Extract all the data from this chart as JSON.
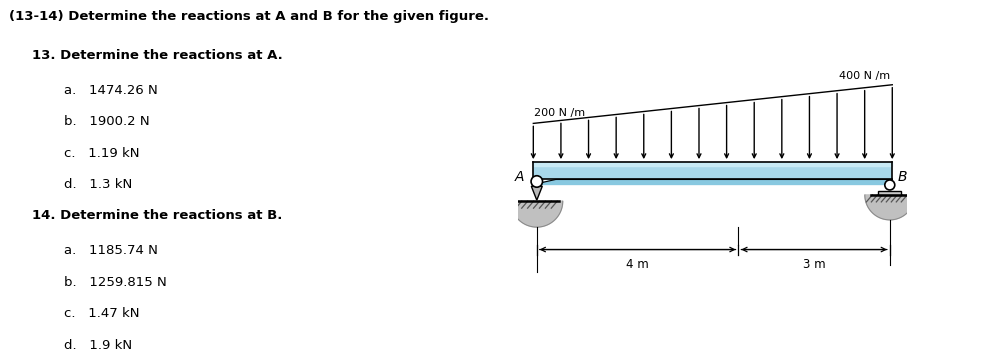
{
  "title": "(13-14) Determine the reactions at A and B for the given figure.",
  "q13_label": "13. Determine the reactions at A.",
  "q13_options": [
    "a.   1474.26 N",
    "b.   1900.2 N",
    "c.   1.19 kN",
    "d.   1.3 kN"
  ],
  "q14_label": "14. Determine the reactions at B.",
  "q14_options": [
    "a.   1185.74 N",
    "b.   1259.815 N",
    "c.   1.47 kN",
    "d.   1.9 kN"
  ],
  "bg_color": "#ffffff",
  "text_color": "#000000",
  "beam_color": "#a8d8ea",
  "beam_highlight": "#c8eaf5",
  "load_label_left": "200 N /m",
  "load_label_right": "400 N /m",
  "dim_label_left": "4 m",
  "dim_label_right": "3 m",
  "label_A": "A",
  "label_B": "B",
  "fig_width": 9.9,
  "fig_height": 3.49,
  "dpi": 100
}
